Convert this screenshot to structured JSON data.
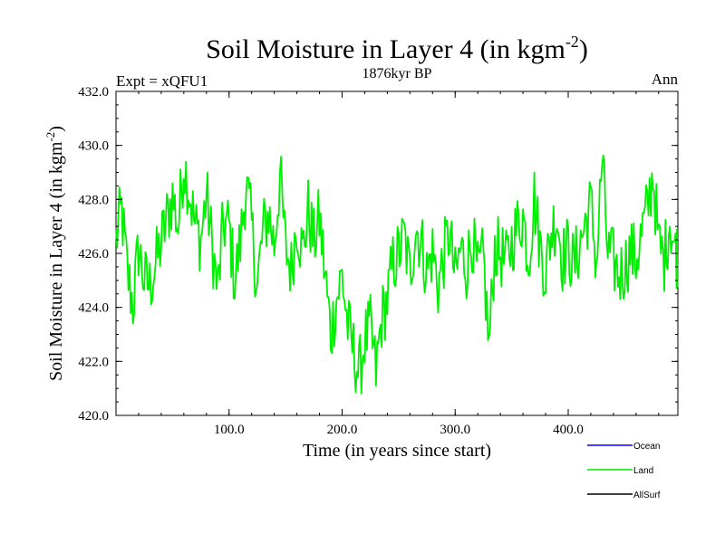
{
  "chart_data": {
    "type": "line",
    "title": "Soil Moisture in Layer 4 (in kgm",
    "title_sup": "-2",
    "title_close": ")",
    "subtitle": "1876kyr BP",
    "left_label": "Expt = xQFU1",
    "right_label": "Ann",
    "xlabel": "Time (in years since start)",
    "ylabel": "Soil Moisture in Layer 4 (in kgm",
    "ylabel_sup": "-2",
    "ylabel_close": ")",
    "xlim": [
      0,
      497
    ],
    "ylim": [
      420.0,
      432.0
    ],
    "x_ticks": [
      100,
      200,
      300,
      400
    ],
    "x_tick_labels": [
      "100.0",
      "200.0",
      "300.0",
      "400.0"
    ],
    "y_ticks": [
      420,
      422,
      424,
      426,
      428,
      430,
      432
    ],
    "y_tick_labels": [
      "420.0",
      "422.0",
      "424.0",
      "426.0",
      "428.0",
      "430.0",
      "432.0"
    ],
    "legend": [
      {
        "name": "Ocean",
        "color": "#0000ff"
      },
      {
        "name": "Land",
        "color": "#00ee00"
      },
      {
        "name": "AllSurf",
        "color": "#000000"
      }
    ],
    "series": [
      {
        "name": "Land",
        "color": "#00ee00",
        "x": [
          0,
          5,
          10,
          15,
          20,
          25,
          30,
          35,
          40,
          45,
          50,
          55,
          60,
          65,
          70,
          75,
          80,
          85,
          90,
          95,
          100,
          105,
          110,
          115,
          120,
          125,
          130,
          135,
          140,
          145,
          150,
          155,
          160,
          165,
          170,
          175,
          180,
          185,
          190,
          195,
          200,
          205,
          210,
          215,
          220,
          225,
          230,
          235,
          240,
          245,
          250,
          255,
          260,
          265,
          270,
          275,
          280,
          285,
          290,
          295,
          300,
          305,
          310,
          315,
          320,
          325,
          330,
          335,
          340,
          345,
          350,
          355,
          360,
          365,
          370,
          375,
          380,
          385,
          390,
          395,
          400,
          405,
          410,
          415,
          420,
          425,
          430,
          435,
          440,
          445,
          450,
          455,
          460,
          465,
          470,
          475,
          480,
          485,
          490,
          495
        ],
        "y": [
          426.5,
          427.6,
          425.3,
          424.1,
          426.2,
          425.0,
          424.8,
          425.6,
          426.4,
          427.3,
          428.1,
          427.0,
          429.4,
          428.3,
          427.0,
          426.5,
          428.2,
          426.3,
          424.6,
          427.1,
          427.0,
          425.0,
          426.4,
          428.6,
          427.0,
          424.8,
          426.8,
          427.5,
          426.3,
          428.9,
          426.2,
          425.4,
          427.2,
          426.0,
          427.6,
          426.4,
          427.3,
          425.2,
          423.0,
          424.3,
          425.2,
          423.3,
          422.4,
          421.5,
          422.8,
          423.2,
          421.6,
          423.6,
          424.3,
          425.6,
          426.0,
          426.6,
          425.2,
          427.0,
          426.4,
          425.3,
          426.1,
          424.8,
          425.9,
          426.8,
          425.0,
          426.2,
          425.5,
          426.6,
          425.2,
          425.8,
          422.5,
          426.2,
          426.0,
          425.6,
          426.4,
          427.0,
          427.4,
          425.8,
          428.1,
          426.3,
          425.3,
          426.8,
          427.4,
          425.8,
          426.2,
          425.5,
          426.3,
          427.1,
          427.8,
          425.6,
          429.5,
          426.0,
          425.7,
          425.2,
          425.5,
          426.1,
          425.8,
          426.7,
          427.6,
          429.0,
          426.3,
          425.8,
          427.3,
          426.0
        ]
      }
    ]
  }
}
